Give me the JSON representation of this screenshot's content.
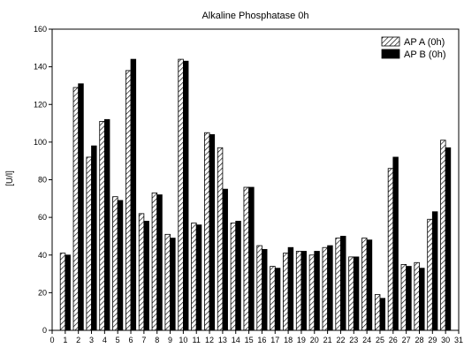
{
  "chart_data": {
    "type": "bar",
    "title": "Alkaline Phosphatase 0h",
    "xlabel": "",
    "ylabel": "[U/l]",
    "xlim": [
      0,
      31
    ],
    "ylim": [
      0,
      160
    ],
    "x_ticks": [
      0,
      1,
      2,
      3,
      4,
      5,
      6,
      7,
      8,
      9,
      10,
      11,
      12,
      13,
      14,
      15,
      16,
      17,
      18,
      19,
      20,
      21,
      22,
      23,
      24,
      25,
      26,
      27,
      28,
      29,
      30,
      31
    ],
    "y_ticks": [
      0,
      20,
      40,
      60,
      80,
      100,
      120,
      140,
      160
    ],
    "grid": false,
    "legend_position": "top-right",
    "categories": [
      1,
      2,
      3,
      4,
      5,
      6,
      7,
      8,
      9,
      10,
      11,
      12,
      13,
      14,
      15,
      16,
      17,
      18,
      19,
      20,
      21,
      22,
      23,
      24,
      25,
      26,
      27,
      28,
      29,
      30
    ],
    "series": [
      {
        "name": "AP A (0h)",
        "fill": "hatched",
        "color": "#000000",
        "values": [
          41,
          129,
          92,
          111,
          71,
          138,
          62,
          73,
          51,
          144,
          57,
          105,
          97,
          57,
          76,
          45,
          34,
          41,
          42,
          40,
          44,
          49,
          39,
          49,
          19,
          86,
          35,
          36,
          59,
          101
        ]
      },
      {
        "name": "AP B (0h)",
        "fill": "solid",
        "color": "#000000",
        "values": [
          40,
          131,
          98,
          112,
          69,
          144,
          58,
          72,
          49,
          143,
          56,
          104,
          75,
          58,
          76,
          43,
          33,
          44,
          42,
          42,
          45,
          50,
          39,
          48,
          17,
          92,
          34,
          33,
          63,
          97
        ]
      }
    ]
  }
}
